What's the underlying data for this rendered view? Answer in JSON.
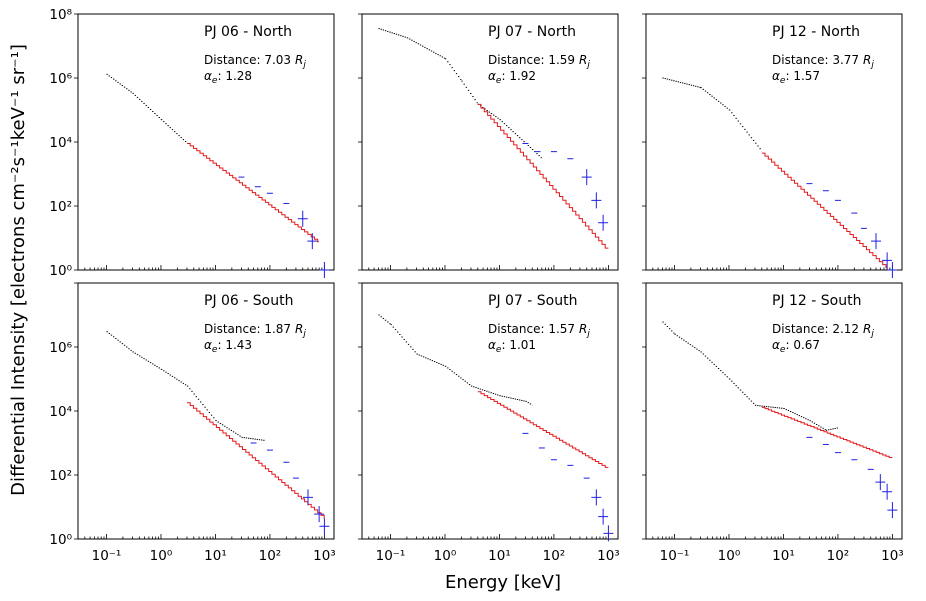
{
  "figure": {
    "ylabel": "Differential Intensity [electrons cm⁻²s⁻¹keV⁻¹ sr⁻¹]",
    "xlabel": "Energy [keV]"
  },
  "axes": {
    "x_ticks": [
      "10⁻¹",
      "10⁰",
      "10¹",
      "10²",
      "10³"
    ],
    "y_ticks": [
      "10⁰",
      "10²",
      "10⁴",
      "10⁶",
      "10⁸"
    ]
  },
  "colors": {
    "data": "#000000",
    "fit": "#e41a1c",
    "residual": "#1f1fe0"
  },
  "chart_data": [
    {
      "type": "scatter",
      "title": "PJ 06 - North",
      "distance_label": "Distance: 7.03",
      "alpha_label": ": 1.28",
      "x_scale": "log",
      "y_scale": "log",
      "xlim": [
        0.03,
        1500
      ],
      "ylim": [
        1,
        100000000
      ],
      "xlabel": "",
      "ylabel": "",
      "black": [
        [
          0.1,
          1300000
        ],
        [
          0.3,
          330000
        ],
        [
          1,
          50000
        ],
        [
          3,
          9000
        ]
      ],
      "red_start": 3,
      "red_y0": 9000,
      "red_slope": -1.28,
      "red_end": 800,
      "blue": [
        [
          30,
          800
        ],
        [
          60,
          400
        ],
        [
          100,
          250
        ],
        [
          200,
          120
        ],
        [
          400,
          40
        ],
        [
          600,
          8
        ],
        [
          1000,
          1
        ]
      ]
    },
    {
      "type": "scatter",
      "title": "PJ 07 - North",
      "distance_label": "Distance: 1.59",
      "alpha_label": ": 1.92",
      "x_scale": "log",
      "y_scale": "log",
      "xlim": [
        0.03,
        1500
      ],
      "ylim": [
        1,
        100000000
      ],
      "xlabel": "",
      "ylabel": "",
      "black": [
        [
          0.06,
          35000000
        ],
        [
          0.2,
          18000000
        ],
        [
          1,
          4000000
        ],
        [
          2,
          800000
        ],
        [
          4,
          150000
        ],
        [
          10,
          50000
        ],
        [
          30,
          9000
        ],
        [
          60,
          3000
        ]
      ],
      "red_start": 4,
      "red_y0": 150000,
      "red_slope": -1.92,
      "red_end": 1000,
      "blue": [
        [
          30,
          9000
        ],
        [
          50,
          5000
        ],
        [
          100,
          5000
        ],
        [
          200,
          3000
        ],
        [
          400,
          800
        ],
        [
          600,
          150
        ],
        [
          800,
          30
        ]
      ]
    },
    {
      "type": "scatter",
      "title": "PJ 12 - North",
      "distance_label": "Distance: 3.77",
      "alpha_label": ": 1.57",
      "x_scale": "log",
      "y_scale": "log",
      "xlim": [
        0.03,
        1500
      ],
      "ylim": [
        1,
        100000000
      ],
      "xlabel": "",
      "ylabel": "",
      "black": [
        [
          0.06,
          1000000
        ],
        [
          0.3,
          500000
        ],
        [
          1,
          100000
        ],
        [
          4,
          5000
        ]
      ],
      "red_start": 4,
      "red_y0": 4500,
      "red_slope": -1.57,
      "red_end": 800,
      "blue": [
        [
          30,
          500
        ],
        [
          60,
          300
        ],
        [
          100,
          150
        ],
        [
          200,
          60
        ],
        [
          300,
          20
        ],
        [
          500,
          8
        ],
        [
          800,
          2
        ],
        [
          1000,
          1
        ]
      ]
    },
    {
      "type": "scatter",
      "title": "PJ 06 - South",
      "distance_label": "Distance: 1.87",
      "alpha_label": ": 1.43",
      "x_scale": "log",
      "y_scale": "log",
      "xlim": [
        0.03,
        1500
      ],
      "ylim": [
        1,
        100000000
      ],
      "xlabel": "",
      "ylabel": "",
      "black": [
        [
          0.1,
          3000000
        ],
        [
          0.3,
          700000
        ],
        [
          1,
          200000
        ],
        [
          3,
          60000
        ],
        [
          10,
          5000
        ],
        [
          30,
          1500
        ],
        [
          80,
          1200
        ]
      ],
      "red_start": 3,
      "red_y0": 18000,
      "red_slope": -1.43,
      "red_end": 1000,
      "blue": [
        [
          50,
          1000
        ],
        [
          100,
          600
        ],
        [
          200,
          250
        ],
        [
          300,
          80
        ],
        [
          500,
          20
        ],
        [
          800,
          6
        ],
        [
          1000,
          2.5
        ]
      ]
    },
    {
      "type": "scatter",
      "title": "PJ 07 - South",
      "distance_label": "Distance: 1.57",
      "alpha_label": ": 1.01",
      "x_scale": "log",
      "y_scale": "log",
      "xlim": [
        0.03,
        1500
      ],
      "ylim": [
        1,
        100000000
      ],
      "xlabel": "",
      "ylabel": "",
      "black": [
        [
          0.06,
          10000000
        ],
        [
          0.1,
          5000000
        ],
        [
          0.3,
          600000
        ],
        [
          1,
          250000
        ],
        [
          3,
          60000
        ],
        [
          10,
          30000
        ],
        [
          30,
          20000
        ],
        [
          40,
          15000
        ]
      ],
      "red_start": 4,
      "red_y0": 40000,
      "red_slope": -1.01,
      "red_end": 1000,
      "blue": [
        [
          30,
          2000
        ],
        [
          60,
          700
        ],
        [
          100,
          300
        ],
        [
          200,
          200
        ],
        [
          400,
          80
        ],
        [
          600,
          20
        ],
        [
          800,
          5
        ],
        [
          1000,
          1.5
        ]
      ]
    },
    {
      "type": "scatter",
      "title": "PJ 12 - South",
      "distance_label": "Distance: 2.12",
      "alpha_label": ": 0.67",
      "x_scale": "log",
      "y_scale": "log",
      "xlim": [
        0.03,
        1500
      ],
      "ylim": [
        1,
        100000000
      ],
      "xlabel": "",
      "ylabel": "",
      "black": [
        [
          0.06,
          6000000
        ],
        [
          0.1,
          2500000
        ],
        [
          0.3,
          700000
        ],
        [
          1,
          100000
        ],
        [
          3,
          15000
        ],
        [
          10,
          12000
        ],
        [
          30,
          5000
        ],
        [
          60,
          2500
        ],
        [
          100,
          3000
        ]
      ],
      "red_start": 4,
      "red_y0": 13000,
      "red_slope": -0.67,
      "red_end": 1000,
      "blue": [
        [
          30,
          1500
        ],
        [
          60,
          900
        ],
        [
          100,
          500
        ],
        [
          200,
          300
        ],
        [
          400,
          150
        ],
        [
          600,
          60
        ],
        [
          800,
          30
        ],
        [
          1000,
          8
        ]
      ]
    }
  ]
}
